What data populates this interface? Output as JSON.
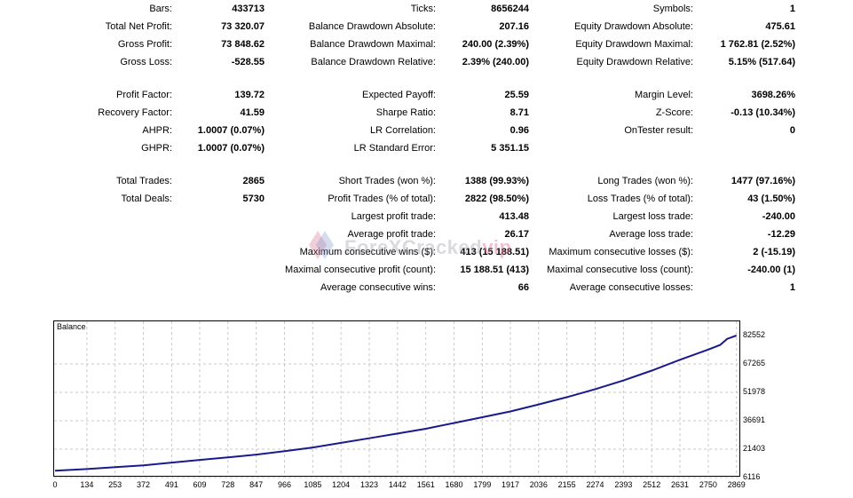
{
  "stats": {
    "c1": [
      {
        "label": "Bars:",
        "value": "433713"
      },
      {
        "label": "Total Net Profit:",
        "value": "73 320.07"
      },
      {
        "label": "Gross Profit:",
        "value": "73 848.62"
      },
      {
        "label": "Gross Loss:",
        "value": "-528.55"
      },
      {
        "label": "Profit Factor:",
        "value": "139.72"
      },
      {
        "label": "Recovery Factor:",
        "value": "41.59"
      },
      {
        "label": "AHPR:",
        "value": "1.0007 (0.07%)"
      },
      {
        "label": "GHPR:",
        "value": "1.0007 (0.07%)"
      },
      {
        "label": "Total Trades:",
        "value": "2865"
      },
      {
        "label": "Total Deals:",
        "value": "5730"
      }
    ],
    "c2": [
      {
        "label": "Ticks:",
        "value": "8656244"
      },
      {
        "label": "Balance Drawdown Absolute:",
        "value": "207.16"
      },
      {
        "label": "Balance Drawdown Maximal:",
        "value": "240.00 (2.39%)"
      },
      {
        "label": "Balance Drawdown Relative:",
        "value": "2.39% (240.00)"
      },
      {
        "label": "Expected Payoff:",
        "value": "25.59"
      },
      {
        "label": "Sharpe Ratio:",
        "value": "8.71"
      },
      {
        "label": "LR Correlation:",
        "value": "0.96"
      },
      {
        "label": "LR Standard Error:",
        "value": "5 351.15"
      },
      {
        "label": "Short Trades (won %):",
        "value": "1388 (99.93%)"
      },
      {
        "label": "Profit Trades (% of total):",
        "value": "2822 (98.50%)"
      },
      {
        "label": "Largest profit trade:",
        "value": "413.48"
      },
      {
        "label": "Average profit trade:",
        "value": "26.17"
      },
      {
        "label": "Maximum consecutive wins ($):",
        "value": "413 (15 188.51)"
      },
      {
        "label": "Maximal consecutive profit (count):",
        "value": "15 188.51 (413)"
      },
      {
        "label": "Average consecutive wins:",
        "value": "66"
      }
    ],
    "c3": [
      {
        "label": "Symbols:",
        "value": "1"
      },
      {
        "label": "Equity Drawdown Absolute:",
        "value": "475.61"
      },
      {
        "label": "Equity Drawdown Maximal:",
        "value": "1 762.81 (2.52%)"
      },
      {
        "label": "Equity Drawdown Relative:",
        "value": "5.15% (517.64)"
      },
      {
        "label": "Margin Level:",
        "value": "3698.26%"
      },
      {
        "label": "Z-Score:",
        "value": "-0.13 (10.34%)"
      },
      {
        "label": "OnTester result:",
        "value": "0"
      },
      {
        "label": "Long Trades (won %):",
        "value": "1477 (97.16%)"
      },
      {
        "label": "Loss Trades (% of total):",
        "value": "43 (1.50%)"
      },
      {
        "label": "Largest loss trade:",
        "value": "-240.00"
      },
      {
        "label": "Average loss trade:",
        "value": "-12.29"
      },
      {
        "label": "Maximum consecutive losses ($):",
        "value": "2 (-15.19)"
      },
      {
        "label": "Maximal consecutive loss (count):",
        "value": "-240.00 (1)"
      },
      {
        "label": "Average consecutive losses:",
        "value": "1"
      }
    ]
  },
  "watermark": {
    "main": "ForeXCracked",
    "suffix": "vip"
  },
  "chart_data": {
    "type": "line",
    "title": "Balance",
    "line_color": "#1a1a8c",
    "grid_color": "#c8c8c8",
    "grid": true,
    "x_ticks": [
      "0",
      "134",
      "253",
      "372",
      "491",
      "609",
      "728",
      "847",
      "966",
      "1085",
      "1204",
      "1323",
      "1442",
      "1561",
      "1680",
      "1799",
      "1917",
      "2036",
      "2155",
      "2274",
      "2393",
      "2512",
      "2631",
      "2750",
      "2869"
    ],
    "y_ticks": [
      "82552",
      "67265",
      "51978",
      "36691",
      "21403",
      "6116"
    ],
    "xlim": [
      0,
      2870
    ],
    "ylim": [
      6116,
      82552
    ],
    "series": [
      {
        "x": [
          0,
          134,
          253,
          372,
          491,
          609,
          728,
          847,
          966,
          1085,
          1204,
          1323,
          1442,
          1561,
          1680,
          1799,
          1917,
          2036,
          2155,
          2274,
          2393,
          2512,
          2631,
          2750,
          2800,
          2830,
          2869
        ],
        "y": [
          9800,
          10700,
          11700,
          12700,
          14200,
          15600,
          17000,
          18500,
          20300,
          22300,
          24800,
          27300,
          29800,
          32400,
          35500,
          38600,
          41700,
          45500,
          49400,
          53700,
          58400,
          63700,
          69500,
          75000,
          77500,
          80800,
          82552
        ]
      }
    ]
  }
}
